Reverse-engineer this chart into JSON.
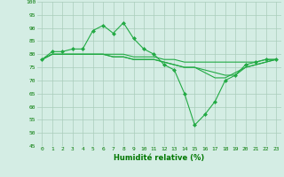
{
  "xlabel": "Humidité relative (%)",
  "bg_color": "#d4ede4",
  "grid_color": "#aaccbb",
  "line_color": "#22aa44",
  "ylim": [
    45,
    100
  ],
  "xlim": [
    -0.5,
    23.5
  ],
  "yticks": [
    45,
    50,
    55,
    60,
    65,
    70,
    75,
    80,
    85,
    90,
    95,
    100
  ],
  "xticks": [
    0,
    1,
    2,
    3,
    4,
    5,
    6,
    7,
    8,
    9,
    10,
    11,
    12,
    13,
    14,
    15,
    16,
    17,
    18,
    19,
    20,
    21,
    22,
    23
  ],
  "series": [
    [
      78,
      81,
      81,
      82,
      82,
      89,
      91,
      88,
      92,
      86,
      82,
      80,
      76,
      74,
      65,
      53,
      57,
      62,
      70,
      72,
      76,
      77,
      78,
      78
    ],
    [
      78,
      80,
      80,
      80,
      80,
      80,
      80,
      80,
      80,
      79,
      79,
      79,
      78,
      78,
      77,
      77,
      77,
      77,
      77,
      77,
      77,
      77,
      78,
      78
    ],
    [
      78,
      80,
      80,
      80,
      80,
      80,
      80,
      79,
      79,
      78,
      78,
      78,
      77,
      76,
      75,
      75,
      74,
      73,
      72,
      72,
      75,
      76,
      77,
      78
    ],
    [
      78,
      80,
      80,
      80,
      80,
      80,
      80,
      79,
      79,
      78,
      78,
      78,
      77,
      76,
      75,
      75,
      73,
      71,
      71,
      73,
      75,
      76,
      77,
      78
    ]
  ]
}
